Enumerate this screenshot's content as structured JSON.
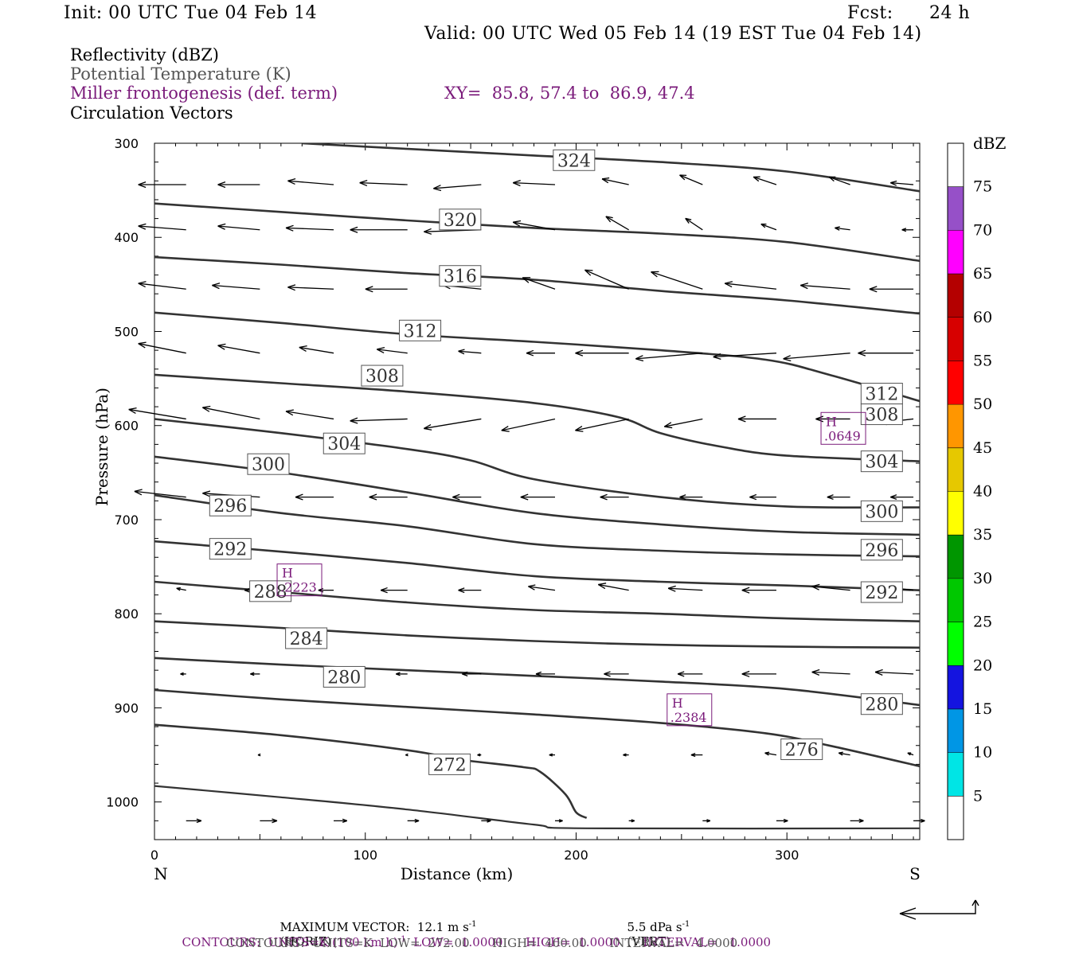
{
  "header": {
    "init": "Init: 00 UTC Tue 04 Feb 14",
    "fcst_label": "Fcst:",
    "fcst_value": "24 h",
    "valid": "Valid: 00 UTC Wed 05 Feb 14 (19 EST Tue 04 Feb 14)"
  },
  "legend": {
    "fields": [
      "Reflectivity (dBZ)",
      "Potential Temperature (K)",
      "Miller frontogenesis (def. term)",
      "Circulation Vectors"
    ],
    "xy": "XY=  85.8, 57.4 to  86.9, 47.4"
  },
  "footer": {
    "max_vector_prefix": "MAXIMUM VECTOR:  12.1 m s",
    "max_vector_mid": "(HORIZ)",
    "max_vector_vert": "5.5 dPa s",
    "max_vector_suffix": "(VERT)",
    "exp": "-1",
    "contours1_a": "CONTOURS:  UNITS=K (100 km h)",
    "contours1_b": "  LOW=  1.0000      HIGH=  1.0000      INTERVAL=   1.0000",
    "contours2": "CONTOURS:  UNITS=K  LOW=  272.00      HIGH=  400.00      INTERVAL=   4.0000"
  },
  "colors": {
    "contour": "#333333",
    "frontogenesis": "#7a1a7a"
  },
  "chart_data": {
    "type": "cross-section",
    "xlabel": "Distance (km)",
    "ylabel": "Pressure (hPa)",
    "xlim": [
      0,
      363
    ],
    "ylim": [
      1040,
      300
    ],
    "x_ticks": [
      0,
      100,
      200,
      300
    ],
    "y_ticks": [
      300,
      400,
      500,
      600,
      700,
      800,
      900,
      1000
    ],
    "x_end_labels": {
      "left": "N",
      "right": "S"
    },
    "colorbar": {
      "unit": "dBZ",
      "labels": [
        5,
        10,
        15,
        20,
        25,
        30,
        35,
        40,
        45,
        50,
        55,
        60,
        65,
        70,
        75
      ],
      "colors": [
        "#ffffff",
        "#00e5e5",
        "#0096e5",
        "#1414e0",
        "#00ff00",
        "#00c800",
        "#009600",
        "#ffff00",
        "#e6c800",
        "#ff9600",
        "#ff0000",
        "#d70000",
        "#b40000",
        "#ff00ff",
        "#9650c8",
        "#ffffff"
      ]
    },
    "theta_contours": [
      {
        "value": 272,
        "points": [
          [
            0,
            918
          ],
          [
            60,
            929
          ],
          [
            120,
            945
          ],
          [
            145,
            955
          ],
          [
            175,
            963
          ],
          [
            183,
            968
          ],
          [
            195,
            992
          ],
          [
            200,
            1011
          ],
          [
            205,
            1017
          ]
        ],
        "labels": [
          [
            140,
            960
          ]
        ]
      },
      {
        "value": 276,
        "points": [
          [
            0,
            881
          ],
          [
            60,
            891
          ],
          [
            120,
            899
          ],
          [
            180,
            907
          ],
          [
            240,
            916
          ],
          [
            290,
            927
          ],
          [
            320,
            940
          ],
          [
            363,
            962
          ]
        ],
        "labels": [
          [
            307,
            944
          ]
        ]
      },
      {
        "value": 280,
        "points": [
          [
            0,
            847
          ],
          [
            60,
            854
          ],
          [
            120,
            860
          ],
          [
            180,
            866
          ],
          [
            240,
            872
          ],
          [
            300,
            880
          ],
          [
            363,
            897
          ]
        ],
        "labels": [
          [
            90,
            867
          ],
          [
            345,
            896
          ]
        ]
      },
      {
        "value": 284,
        "points": [
          [
            0,
            808
          ],
          [
            60,
            815
          ],
          [
            120,
            823
          ],
          [
            180,
            829
          ],
          [
            240,
            833
          ],
          [
            300,
            835
          ],
          [
            363,
            836
          ]
        ],
        "labels": [
          [
            72,
            826
          ]
        ]
      },
      {
        "value": 288,
        "points": [
          [
            0,
            766
          ],
          [
            60,
            777
          ],
          [
            120,
            788
          ],
          [
            180,
            796
          ],
          [
            240,
            800
          ],
          [
            300,
            805
          ],
          [
            363,
            808
          ]
        ],
        "labels": [
          [
            55,
            776
          ]
        ]
      },
      {
        "value": 292,
        "points": [
          [
            0,
            723
          ],
          [
            60,
            734
          ],
          [
            120,
            746
          ],
          [
            180,
            760
          ],
          [
            240,
            766
          ],
          [
            300,
            770
          ],
          [
            363,
            775
          ]
        ],
        "labels": [
          [
            36,
            731
          ],
          [
            345,
            777
          ]
        ]
      },
      {
        "value": 296,
        "points": [
          [
            0,
            674
          ],
          [
            60,
            693
          ],
          [
            120,
            707
          ],
          [
            180,
            726
          ],
          [
            240,
            733
          ],
          [
            300,
            737
          ],
          [
            363,
            739
          ]
        ],
        "labels": [
          [
            36,
            685
          ],
          [
            345,
            732
          ]
        ]
      },
      {
        "value": 300,
        "points": [
          [
            0,
            633
          ],
          [
            60,
            650
          ],
          [
            120,
            671
          ],
          [
            180,
            693
          ],
          [
            240,
            705
          ],
          [
            300,
            713
          ],
          [
            363,
            716
          ]
        ],
        "labels": [
          [
            54,
            641
          ],
          [
            345,
            691
          ]
        ]
      },
      {
        "value": 304,
        "points": [
          [
            0,
            593
          ],
          [
            60,
            608
          ],
          [
            120,
            625
          ],
          [
            150,
            637
          ],
          [
            180,
            657
          ],
          [
            240,
            676
          ],
          [
            300,
            686
          ],
          [
            363,
            687
          ]
        ],
        "labels": [
          [
            90,
            619
          ],
          [
            345,
            638
          ]
        ]
      },
      {
        "value": 308,
        "points": [
          [
            0,
            546
          ],
          [
            60,
            555
          ],
          [
            120,
            564
          ],
          [
            180,
            576
          ],
          [
            220,
            591
          ],
          [
            240,
            608
          ],
          [
            270,
            623
          ],
          [
            300,
            632
          ],
          [
            363,
            638
          ]
        ],
        "labels": [
          [
            108,
            547
          ],
          [
            345,
            588
          ]
        ]
      },
      {
        "value": 312,
        "points": [
          [
            0,
            480
          ],
          [
            60,
            491
          ],
          [
            120,
            503
          ],
          [
            180,
            511
          ],
          [
            240,
            520
          ],
          [
            290,
            530
          ],
          [
            320,
            546
          ],
          [
            363,
            574
          ]
        ],
        "labels": [
          [
            126,
            499
          ],
          [
            345,
            566
          ]
        ]
      },
      {
        "value": 316,
        "points": [
          [
            0,
            421
          ],
          [
            60,
            429
          ],
          [
            120,
            438
          ],
          [
            180,
            445
          ],
          [
            240,
            457
          ],
          [
            300,
            467
          ],
          [
            363,
            481
          ]
        ],
        "labels": [
          [
            145,
            441
          ]
        ]
      },
      {
        "value": 320,
        "points": [
          [
            0,
            364
          ],
          [
            60,
            373
          ],
          [
            120,
            382
          ],
          [
            180,
            390
          ],
          [
            240,
            396
          ],
          [
            300,
            405
          ],
          [
            363,
            425
          ]
        ],
        "labels": [
          [
            145,
            381
          ]
        ]
      },
      {
        "value": 324,
        "points": [
          [
            70,
            300
          ],
          [
            120,
            306
          ],
          [
            180,
            313
          ],
          [
            240,
            320
          ],
          [
            300,
            330
          ],
          [
            363,
            351
          ]
        ],
        "labels": [
          [
            199,
            318
          ]
        ]
      }
    ],
    "surface": [
      [
        0,
        983
      ],
      [
        60,
        995
      ],
      [
        120,
        1008
      ],
      [
        180,
        1024
      ],
      [
        205,
        1028
      ],
      [
        363,
        1028
      ]
    ],
    "frontogenesis_highs": [
      {
        "label": "H",
        "value": ".0649",
        "x": 326,
        "p": 603
      },
      {
        "label": "H",
        "value": ".2223",
        "x": 68,
        "p": 764
      },
      {
        "label": "H",
        "value": ".2384",
        "x": 253,
        "p": 902
      }
    ],
    "vectors": [
      {
        "p": 344,
        "u": [
          -25,
          -22,
          -24,
          -25,
          -25,
          -22,
          -14,
          -12,
          -12,
          -11,
          -12
        ],
        "w": [
          0,
          0,
          -2,
          -1,
          2,
          -1,
          -3,
          -5,
          -4,
          -4,
          -1
        ]
      },
      {
        "p": 392,
        "u": [
          -25,
          -22,
          -25,
          -30,
          -30,
          -22,
          -12,
          -9,
          -8,
          -8,
          -6
        ],
        "w": [
          -2,
          -2,
          -1,
          0,
          1,
          -4,
          -7,
          -6,
          -3,
          -1,
          0
        ]
      },
      {
        "p": 455,
        "u": [
          -25,
          -25,
          -24,
          -22,
          -20,
          -17,
          -23,
          -27,
          -27,
          -26,
          -23
        ],
        "w": [
          -3,
          -2,
          -1,
          0,
          -2,
          -6,
          -10,
          -9,
          -3,
          -2,
          0
        ]
      },
      {
        "p": 523,
        "u": [
          -25,
          -22,
          -18,
          -16,
          -12,
          -15,
          -28,
          -35,
          -33,
          -35,
          -29
        ],
        "w": [
          -5,
          -4,
          -3,
          -2,
          -1,
          0,
          0,
          3,
          2,
          3,
          0
        ]
      },
      {
        "p": 593,
        "u": [
          -30,
          -30,
          -25,
          -30,
          -30,
          -28,
          -28,
          -20,
          -20,
          -18,
          -18
        ],
        "w": [
          -5,
          -6,
          -4,
          1,
          5,
          6,
          6,
          4,
          0,
          0,
          2
        ]
      },
      {
        "p": 676,
        "u": [
          -27,
          -30,
          -20,
          -20,
          -15,
          -18,
          -15,
          -12,
          -14,
          -12,
          -12
        ],
        "w": [
          -3,
          -2,
          0,
          0,
          0,
          0,
          0,
          0,
          0,
          0,
          0
        ]
      },
      {
        "p": 775,
        "u": [
          -5,
          -8,
          -8,
          -14,
          -12,
          -14,
          -16,
          -18,
          -18,
          -20,
          -18
        ],
        "w": [
          -1,
          0,
          0,
          0,
          0,
          -2,
          -3,
          -1,
          0,
          -2,
          -2
        ]
      },
      {
        "p": 864,
        "u": [
          -3,
          -5,
          -5,
          -6,
          -10,
          -10,
          -13,
          -13,
          -18,
          -20,
          -20
        ],
        "w": [
          0,
          0,
          0,
          0,
          0,
          0,
          0,
          0,
          0,
          -1,
          -1
        ]
      },
      {
        "p": 950,
        "u": [
          0,
          -1,
          0,
          -1,
          -2,
          -3,
          -3,
          -6,
          -6,
          -6,
          -3
        ],
        "w": [
          0,
          0,
          0,
          0,
          0,
          0,
          0,
          0,
          -1,
          -1,
          -1
        ]
      },
      {
        "p": 1020,
        "u": [
          8,
          9,
          7,
          6,
          5,
          4,
          3,
          4,
          6,
          7,
          6
        ],
        "w": [
          0,
          0,
          0,
          0,
          0,
          0,
          0,
          0,
          0,
          0,
          0
        ]
      }
    ],
    "vector_x": [
      15,
      50,
      85,
      120,
      155,
      190,
      225,
      260,
      295,
      330,
      360
    ]
  }
}
